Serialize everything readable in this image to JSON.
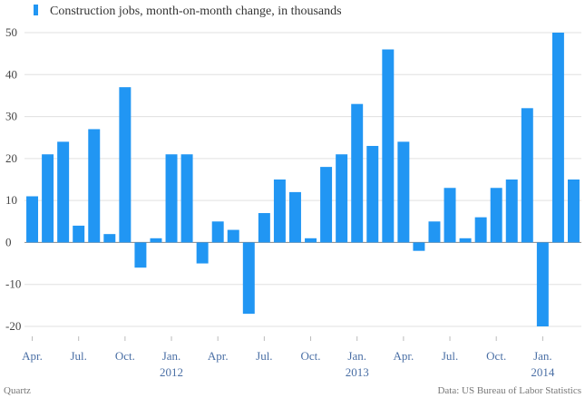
{
  "chart_data": {
    "type": "bar",
    "title": "Construction jobs, month-on-month change, in thousands",
    "legend": "Construction jobs, month-on-month change, in thousands",
    "legend_position": "top-left",
    "ylim": [
      -20,
      50
    ],
    "yticks": [
      50,
      40,
      30,
      20,
      10,
      0,
      -10,
      -20
    ],
    "grid": true,
    "series": [
      {
        "name": "Construction jobs, month-on-month change, in thousands",
        "color": "#2196f3",
        "values": [
          11,
          21,
          24,
          4,
          27,
          2,
          37,
          -6,
          1,
          21,
          21,
          -5,
          5,
          3,
          -17,
          7,
          15,
          12,
          1,
          18,
          21,
          33,
          23,
          46,
          24,
          -2,
          5,
          13,
          1,
          6,
          13,
          15,
          32,
          -20,
          50,
          15
        ]
      }
    ],
    "x_tick_labels": [
      {
        "label": "Apr.",
        "index": 0
      },
      {
        "label": "Jul.",
        "index": 3
      },
      {
        "label": "Oct.",
        "index": 6
      },
      {
        "label": "Jan.",
        "index": 9
      },
      {
        "label": "Apr.",
        "index": 12
      },
      {
        "label": "Jul.",
        "index": 15
      },
      {
        "label": "Oct.",
        "index": 18
      },
      {
        "label": "Jan.",
        "index": 21
      },
      {
        "label": "Apr.",
        "index": 24
      },
      {
        "label": "Jul.",
        "index": 27
      },
      {
        "label": "Oct.",
        "index": 30
      },
      {
        "label": "Jan.",
        "index": 33
      }
    ],
    "year_labels": [
      {
        "label": "2012",
        "index": 9
      },
      {
        "label": "2013",
        "index": 21
      },
      {
        "label": "2014",
        "index": 33
      }
    ]
  },
  "footer": {
    "source_left": "Quartz",
    "source_right": "Data: US Bureau of Labor Statistics"
  },
  "colors": {
    "bar": "#2196f3",
    "grid": "#e0e0e0",
    "zero_line": "#888888",
    "axis_text": "#4a6fa5"
  }
}
